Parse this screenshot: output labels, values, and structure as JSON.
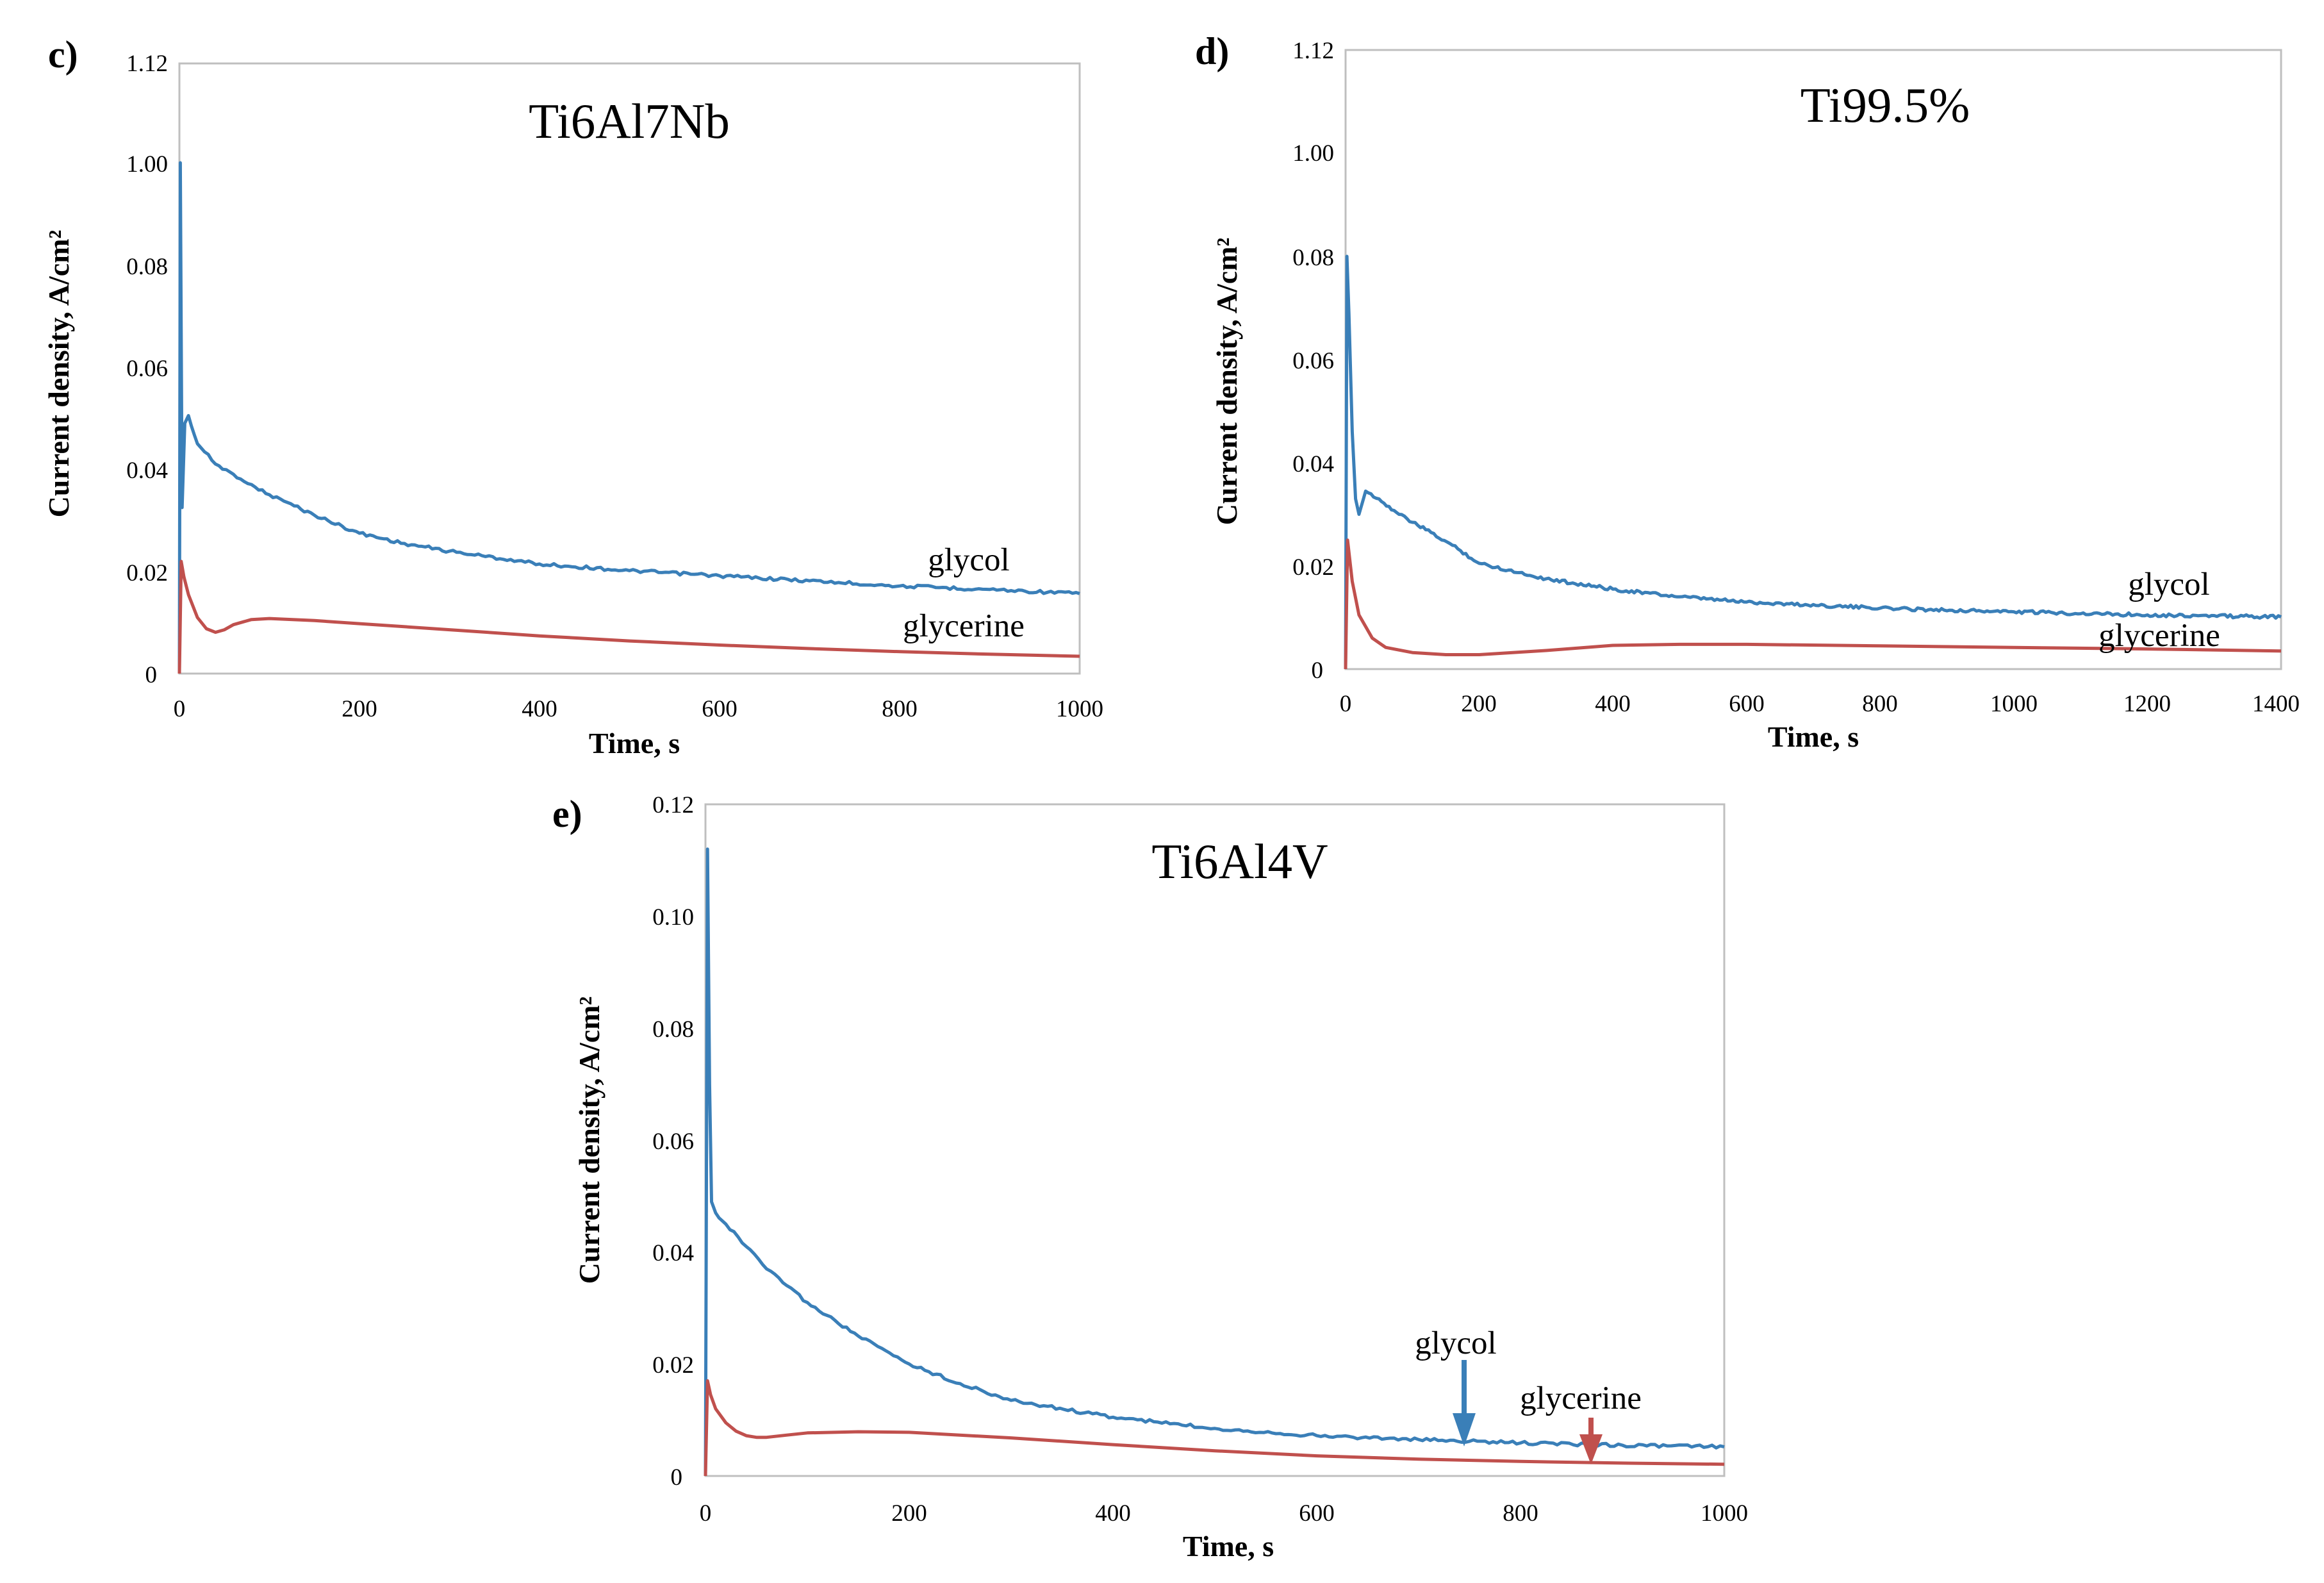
{
  "figure": {
    "colors": {
      "glycol": "#3a7fb8",
      "glycerine": "#c0504d",
      "frame": "#bfbfbf"
    }
  },
  "chart_data": [
    {
      "type": "line",
      "panel_label": "c)",
      "title": "Ti6Al7Nb",
      "xlabel": "Time, s",
      "ylabel": "Current density, A/cm²",
      "xlim": [
        0,
        1000
      ],
      "xticks": [
        "0",
        "200",
        "400",
        "600",
        "800",
        "1000"
      ],
      "yticks": [
        "0",
        "0.02",
        "0.04",
        "0.06",
        "0.08",
        "1.00",
        "1.12"
      ],
      "grid": false,
      "series": [
        {
          "name": "glycol",
          "x": [
            0,
            1,
            3,
            6,
            10,
            20,
            40,
            60,
            80,
            100,
            120,
            150,
            200,
            250,
            300,
            400,
            500,
            600,
            700,
            800,
            900,
            1000
          ],
          "y": [
            0.0,
            1.0,
            0.0325,
            0.049,
            0.0505,
            0.045,
            0.041,
            0.039,
            0.037,
            0.035,
            0.0335,
            0.031,
            0.0275,
            0.0255,
            0.024,
            0.0215,
            0.0202,
            0.0192,
            0.0182,
            0.0172,
            0.0165,
            0.0157
          ]
        },
        {
          "name": "glycerine",
          "x": [
            0,
            2,
            5,
            10,
            20,
            30,
            40,
            50,
            60,
            80,
            100,
            150,
            200,
            300,
            400,
            500,
            600,
            700,
            800,
            900,
            1000
          ],
          "y": [
            0.0,
            0.022,
            0.019,
            0.0155,
            0.011,
            0.0088,
            0.0081,
            0.0086,
            0.0096,
            0.0106,
            0.0108,
            0.0104,
            0.0098,
            0.0086,
            0.0074,
            0.0064,
            0.0056,
            0.0049,
            0.0043,
            0.0038,
            0.0034
          ]
        }
      ],
      "annotations": [
        "glycol",
        "glycerine"
      ]
    },
    {
      "type": "line",
      "panel_label": "d)",
      "title": "Ti99.5%",
      "xlabel": "Time, s",
      "ylabel": "Current density, A/cm²",
      "xlim": [
        0,
        1400
      ],
      "xticks": [
        "0",
        "200",
        "400",
        "600",
        "800",
        "1000",
        "1200",
        "1400"
      ],
      "yticks": [
        "0",
        "0.02",
        "0.04",
        "0.06",
        "0.08",
        "1.00",
        "1.12"
      ],
      "grid": false,
      "series": [
        {
          "name": "glycol",
          "x": [
            0,
            2,
            5,
            10,
            15,
            20,
            30,
            50,
            80,
            120,
            160,
            200,
            300,
            400,
            500,
            600,
            800,
            1000,
            1200,
            1400
          ],
          "y": [
            0.0,
            0.08,
            0.069,
            0.046,
            0.033,
            0.03,
            0.0345,
            0.033,
            0.03,
            0.027,
            0.024,
            0.0205,
            0.0175,
            0.0155,
            0.014,
            0.013,
            0.0118,
            0.0111,
            0.0105,
            0.0101
          ]
        },
        {
          "name": "glycerine",
          "x": [
            0,
            3,
            10,
            20,
            40,
            60,
            100,
            150,
            200,
            300,
            400,
            500,
            600,
            800,
            1000,
            1200,
            1400
          ],
          "y": [
            0.0,
            0.025,
            0.017,
            0.0105,
            0.006,
            0.0042,
            0.0032,
            0.0028,
            0.0028,
            0.0036,
            0.0046,
            0.0048,
            0.0048,
            0.0045,
            0.0042,
            0.0039,
            0.0035
          ]
        }
      ],
      "annotations": [
        "glycol",
        "glycerine"
      ]
    },
    {
      "type": "line",
      "panel_label": "e)",
      "title": "Ti6Al4V",
      "xlabel": "Time, s",
      "ylabel": "Current density, A/cm²",
      "xlim": [
        0,
        1000
      ],
      "ylim": [
        0,
        0.12
      ],
      "xticks": [
        "0",
        "200",
        "400",
        "600",
        "800",
        "1000"
      ],
      "yticks": [
        "0",
        "0.02",
        "0.04",
        "0.06",
        "0.08",
        "0.10",
        "0.12"
      ],
      "grid": false,
      "series": [
        {
          "name": "glycol",
          "x": [
            0,
            2,
            4,
            6,
            10,
            20,
            40,
            60,
            80,
            100,
            150,
            200,
            250,
            300,
            400,
            500,
            600,
            700,
            750,
            800,
            900,
            1000
          ],
          "y": [
            0.0,
            0.112,
            0.07,
            0.049,
            0.047,
            0.045,
            0.041,
            0.037,
            0.034,
            0.031,
            0.025,
            0.02,
            0.0165,
            0.0135,
            0.0105,
            0.0085,
            0.0072,
            0.0065,
            0.0062,
            0.0059,
            0.0055,
            0.0052
          ]
        },
        {
          "name": "glycerine",
          "x": [
            0,
            2,
            5,
            10,
            20,
            30,
            40,
            50,
            60,
            80,
            100,
            150,
            200,
            300,
            400,
            500,
            600,
            700,
            800,
            900,
            1000
          ],
          "y": [
            0.0,
            0.017,
            0.0145,
            0.012,
            0.0095,
            0.008,
            0.0072,
            0.0069,
            0.0069,
            0.0073,
            0.0077,
            0.0079,
            0.0078,
            0.0068,
            0.0056,
            0.0045,
            0.0036,
            0.003,
            0.0026,
            0.0023,
            0.0021
          ]
        }
      ],
      "annotations": [
        "glycol",
        "glycerine"
      ]
    }
  ]
}
